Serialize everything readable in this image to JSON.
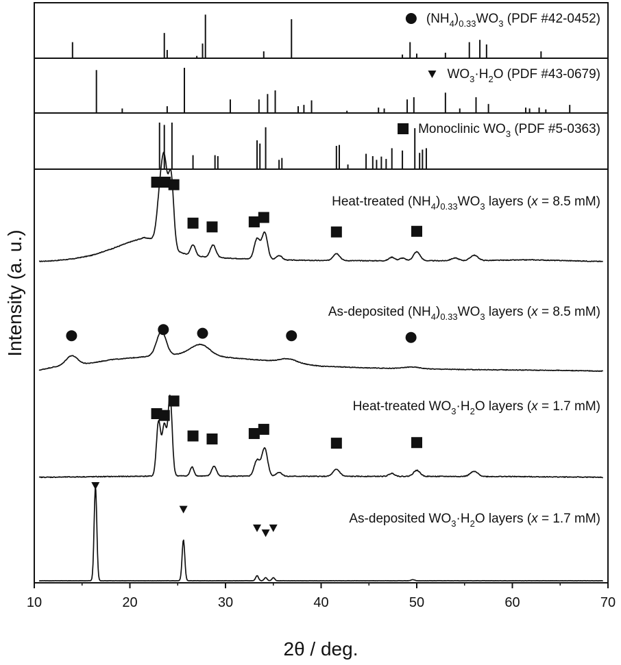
{
  "chart_data": {
    "type": "line",
    "xlabel": "2θ / deg.",
    "ylabel": "Intensity (a. u.)",
    "xlim": [
      10,
      70
    ],
    "xticks": [
      10,
      20,
      30,
      40,
      50,
      60,
      70
    ],
    "colors": {
      "ink": "#111111"
    },
    "reference_panels": [
      {
        "key": "nh4",
        "marker": "circle",
        "label_parts": [
          "(NH",
          "4",
          ")",
          "0.33",
          "WO",
          "3",
          " (PDF #42-0452)"
        ],
        "peaks": [
          {
            "x": 14.0,
            "h": 0.35
          },
          {
            "x": 23.6,
            "h": 0.55
          },
          {
            "x": 23.9,
            "h": 0.18
          },
          {
            "x": 27.0,
            "h": 0.05
          },
          {
            "x": 27.6,
            "h": 0.32
          },
          {
            "x": 27.9,
            "h": 0.95
          },
          {
            "x": 34.0,
            "h": 0.15
          },
          {
            "x": 36.9,
            "h": 0.85
          },
          {
            "x": 48.5,
            "h": 0.08
          },
          {
            "x": 49.3,
            "h": 0.35
          },
          {
            "x": 50.0,
            "h": 0.1
          },
          {
            "x": 53.0,
            "h": 0.12
          },
          {
            "x": 55.5,
            "h": 0.35
          },
          {
            "x": 56.6,
            "h": 0.4
          },
          {
            "x": 57.3,
            "h": 0.3
          },
          {
            "x": 63.0,
            "h": 0.15
          }
        ]
      },
      {
        "key": "hydrate",
        "marker": "triangle",
        "label_parts": [
          "WO",
          "3",
          "·H",
          "2",
          "O (PDF #43-0679)"
        ],
        "peaks": [
          {
            "x": 16.5,
            "h": 0.95
          },
          {
            "x": 19.2,
            "h": 0.1
          },
          {
            "x": 23.9,
            "h": 0.15
          },
          {
            "x": 25.7,
            "h": 1.0
          },
          {
            "x": 30.5,
            "h": 0.3
          },
          {
            "x": 33.5,
            "h": 0.3
          },
          {
            "x": 34.4,
            "h": 0.42
          },
          {
            "x": 35.2,
            "h": 0.5
          },
          {
            "x": 37.6,
            "h": 0.15
          },
          {
            "x": 38.2,
            "h": 0.18
          },
          {
            "x": 39.0,
            "h": 0.28
          },
          {
            "x": 42.7,
            "h": 0.05
          },
          {
            "x": 46.0,
            "h": 0.12
          },
          {
            "x": 46.6,
            "h": 0.1
          },
          {
            "x": 49.0,
            "h": 0.3
          },
          {
            "x": 49.7,
            "h": 0.35
          },
          {
            "x": 53.0,
            "h": 0.45
          },
          {
            "x": 54.5,
            "h": 0.1
          },
          {
            "x": 56.2,
            "h": 0.35
          },
          {
            "x": 57.5,
            "h": 0.2
          },
          {
            "x": 61.4,
            "h": 0.12
          },
          {
            "x": 61.8,
            "h": 0.1
          },
          {
            "x": 62.8,
            "h": 0.12
          },
          {
            "x": 63.5,
            "h": 0.08
          },
          {
            "x": 66.0,
            "h": 0.18
          }
        ]
      },
      {
        "key": "monoclinic",
        "marker": "square",
        "label_parts": [
          "Monoclinic WO",
          "3",
          " (PDF #5-0363)"
        ],
        "peaks": [
          {
            "x": 23.1,
            "h": 1.0
          },
          {
            "x": 23.6,
            "h": 0.95
          },
          {
            "x": 24.4,
            "h": 1.0
          },
          {
            "x": 26.6,
            "h": 0.3
          },
          {
            "x": 28.9,
            "h": 0.3
          },
          {
            "x": 29.2,
            "h": 0.28
          },
          {
            "x": 33.3,
            "h": 0.62
          },
          {
            "x": 33.6,
            "h": 0.55
          },
          {
            "x": 34.2,
            "h": 0.9
          },
          {
            "x": 35.6,
            "h": 0.2
          },
          {
            "x": 35.9,
            "h": 0.24
          },
          {
            "x": 41.6,
            "h": 0.5
          },
          {
            "x": 41.9,
            "h": 0.52
          },
          {
            "x": 42.8,
            "h": 0.1
          },
          {
            "x": 44.7,
            "h": 0.33
          },
          {
            "x": 45.4,
            "h": 0.28
          },
          {
            "x": 45.8,
            "h": 0.2
          },
          {
            "x": 46.3,
            "h": 0.27
          },
          {
            "x": 46.8,
            "h": 0.22
          },
          {
            "x": 47.4,
            "h": 0.45
          },
          {
            "x": 48.5,
            "h": 0.4
          },
          {
            "x": 49.8,
            "h": 0.88
          },
          {
            "x": 50.3,
            "h": 0.35
          },
          {
            "x": 50.6,
            "h": 0.42
          },
          {
            "x": 51.0,
            "h": 0.45
          }
        ]
      }
    ],
    "patterns": [
      {
        "key": "heat-treated-nh4",
        "label_parts": [
          "Heat-treated (NH",
          "4",
          ")",
          "0.33",
          "WO",
          "3",
          " layers (",
          "x",
          " = 8.5 mM)"
        ],
        "background": [
          [
            10,
            0.0
          ],
          [
            12,
            0.01
          ],
          [
            14,
            0.03
          ],
          [
            16,
            0.07
          ],
          [
            18,
            0.14
          ],
          [
            20,
            0.22
          ],
          [
            21.5,
            0.27
          ],
          [
            22.5,
            0.25
          ],
          [
            24.5,
            0.13
          ],
          [
            26,
            0.08
          ],
          [
            28,
            0.05
          ],
          [
            30,
            0.04
          ],
          [
            35,
            0.02
          ],
          [
            40,
            0.012
          ],
          [
            45,
            0.01
          ],
          [
            55,
            0.01
          ],
          [
            62,
            0.02
          ],
          [
            70,
            0.0
          ]
        ],
        "peaks": [
          {
            "x": 23.1,
            "a": 0.45,
            "w": 0.3
          },
          {
            "x": 23.6,
            "a": 0.88,
            "w": 0.3
          },
          {
            "x": 24.3,
            "a": 0.82,
            "w": 0.28
          },
          {
            "x": 26.6,
            "a": 0.12,
            "w": 0.25
          },
          {
            "x": 28.7,
            "a": 0.14,
            "w": 0.3
          },
          {
            "x": 33.3,
            "a": 0.23,
            "w": 0.3
          },
          {
            "x": 34.1,
            "a": 0.3,
            "w": 0.3
          },
          {
            "x": 35.6,
            "a": 0.05,
            "w": 0.3
          },
          {
            "x": 41.6,
            "a": 0.08,
            "w": 0.35
          },
          {
            "x": 47.4,
            "a": 0.04,
            "w": 0.3
          },
          {
            "x": 48.5,
            "a": 0.03,
            "w": 0.3
          },
          {
            "x": 50.0,
            "a": 0.1,
            "w": 0.35
          },
          {
            "x": 54.0,
            "a": 0.03,
            "w": 0.4
          },
          {
            "x": 56.0,
            "a": 0.06,
            "w": 0.4
          }
        ],
        "markers": [
          {
            "x": 22.8,
            "h": 1.0
          },
          {
            "x": 23.7,
            "h": 1.0
          },
          {
            "x": 24.6,
            "h": 0.96
          },
          {
            "x": 26.6,
            "h": 0.35
          },
          {
            "x": 28.6,
            "h": 0.29
          },
          {
            "x": 33.0,
            "h": 0.37
          },
          {
            "x": 34.0,
            "h": 0.44
          },
          {
            "x": 41.6,
            "h": 0.21
          },
          {
            "x": 50.0,
            "h": 0.22
          }
        ]
      },
      {
        "key": "as-deposited-nh4",
        "label_parts": [
          "As-deposited (NH",
          "4",
          ")",
          "0.33",
          "WO",
          "3",
          " layers (",
          "x",
          " = 8.5 mM)"
        ],
        "background": [
          [
            10,
            0.0
          ],
          [
            12,
            0.05
          ],
          [
            14,
            0.07
          ],
          [
            16,
            0.1
          ],
          [
            18,
            0.14
          ],
          [
            20,
            0.16
          ],
          [
            22,
            0.18
          ],
          [
            24,
            0.19
          ],
          [
            26,
            0.22
          ],
          [
            28,
            0.2
          ],
          [
            30,
            0.17
          ],
          [
            33,
            0.14
          ],
          [
            36,
            0.12
          ],
          [
            40,
            0.06
          ],
          [
            45,
            0.04
          ],
          [
            55,
            0.02
          ],
          [
            65,
            0.01
          ],
          [
            70,
            0.0
          ]
        ],
        "peaks": [
          {
            "x": 13.9,
            "a": 0.12,
            "w": 0.6
          },
          {
            "x": 23.3,
            "a": 0.3,
            "w": 0.5
          },
          {
            "x": 27.4,
            "a": 0.12,
            "w": 0.9
          },
          {
            "x": 36.6,
            "a": 0.04,
            "w": 0.8
          },
          {
            "x": 49.5,
            "a": 0.02,
            "w": 0.8
          }
        ],
        "markers": [
          {
            "x": 13.9,
            "h": 0.55
          },
          {
            "x": 23.5,
            "h": 0.8
          },
          {
            "x": 27.6,
            "h": 0.65
          },
          {
            "x": 36.9,
            "h": 0.55
          },
          {
            "x": 49.4,
            "h": 0.48
          }
        ]
      },
      {
        "key": "heat-treated-hydrate",
        "label_parts": [
          "Heat-treated WO",
          "3",
          "·H",
          "2",
          "O layers (",
          "x",
          " = 1.7 mM)"
        ],
        "background": [
          [
            10,
            0.0
          ],
          [
            15,
            0.005
          ],
          [
            20,
            0.01
          ],
          [
            25,
            0.015
          ],
          [
            30,
            0.012
          ],
          [
            40,
            0.01
          ],
          [
            50,
            0.01
          ],
          [
            60,
            0.008
          ],
          [
            70,
            0.0
          ]
        ],
        "peaks": [
          {
            "x": 23.0,
            "a": 0.55,
            "w": 0.22
          },
          {
            "x": 23.6,
            "a": 0.5,
            "w": 0.22
          },
          {
            "x": 24.2,
            "a": 0.8,
            "w": 0.22
          },
          {
            "x": 26.5,
            "a": 0.09,
            "w": 0.2
          },
          {
            "x": 28.8,
            "a": 0.1,
            "w": 0.25
          },
          {
            "x": 33.3,
            "a": 0.16,
            "w": 0.3
          },
          {
            "x": 34.1,
            "a": 0.28,
            "w": 0.3
          },
          {
            "x": 35.6,
            "a": 0.04,
            "w": 0.3
          },
          {
            "x": 41.6,
            "a": 0.07,
            "w": 0.35
          },
          {
            "x": 47.4,
            "a": 0.03,
            "w": 0.3
          },
          {
            "x": 50.0,
            "a": 0.06,
            "w": 0.35
          },
          {
            "x": 56.0,
            "a": 0.05,
            "w": 0.4
          }
        ],
        "markers": [
          {
            "x": 22.8,
            "h": 0.75
          },
          {
            "x": 23.6,
            "h": 0.72
          },
          {
            "x": 24.6,
            "h": 0.96
          },
          {
            "x": 26.6,
            "h": 0.38
          },
          {
            "x": 28.6,
            "h": 0.33
          },
          {
            "x": 33.0,
            "h": 0.42
          },
          {
            "x": 34.0,
            "h": 0.49
          },
          {
            "x": 41.6,
            "h": 0.26
          },
          {
            "x": 50.0,
            "h": 0.27
          }
        ]
      },
      {
        "key": "as-deposited-hydrate",
        "label_parts": [
          "As-deposited WO",
          "3",
          "·H",
          "2",
          "O layers (",
          "x",
          " = 1.7 mM)"
        ],
        "background": [
          [
            10,
            0.0
          ],
          [
            70,
            0.0
          ]
        ],
        "peaks": [
          {
            "x": 16.4,
            "a": 0.92,
            "w": 0.14
          },
          {
            "x": 25.6,
            "a": 0.4,
            "w": 0.14
          },
          {
            "x": 33.3,
            "a": 0.05,
            "w": 0.15
          },
          {
            "x": 34.2,
            "a": 0.03,
            "w": 0.15
          },
          {
            "x": 35.0,
            "a": 0.03,
            "w": 0.15
          },
          {
            "x": 49.6,
            "a": 0.01,
            "w": 0.2
          }
        ],
        "markers": [
          {
            "x": 16.4,
            "h": 1.0
          },
          {
            "x": 25.6,
            "h": 0.62
          },
          {
            "x": 33.3,
            "h": 0.32
          },
          {
            "x": 34.2,
            "h": 0.24
          },
          {
            "x": 35.0,
            "h": 0.32
          }
        ]
      }
    ]
  }
}
